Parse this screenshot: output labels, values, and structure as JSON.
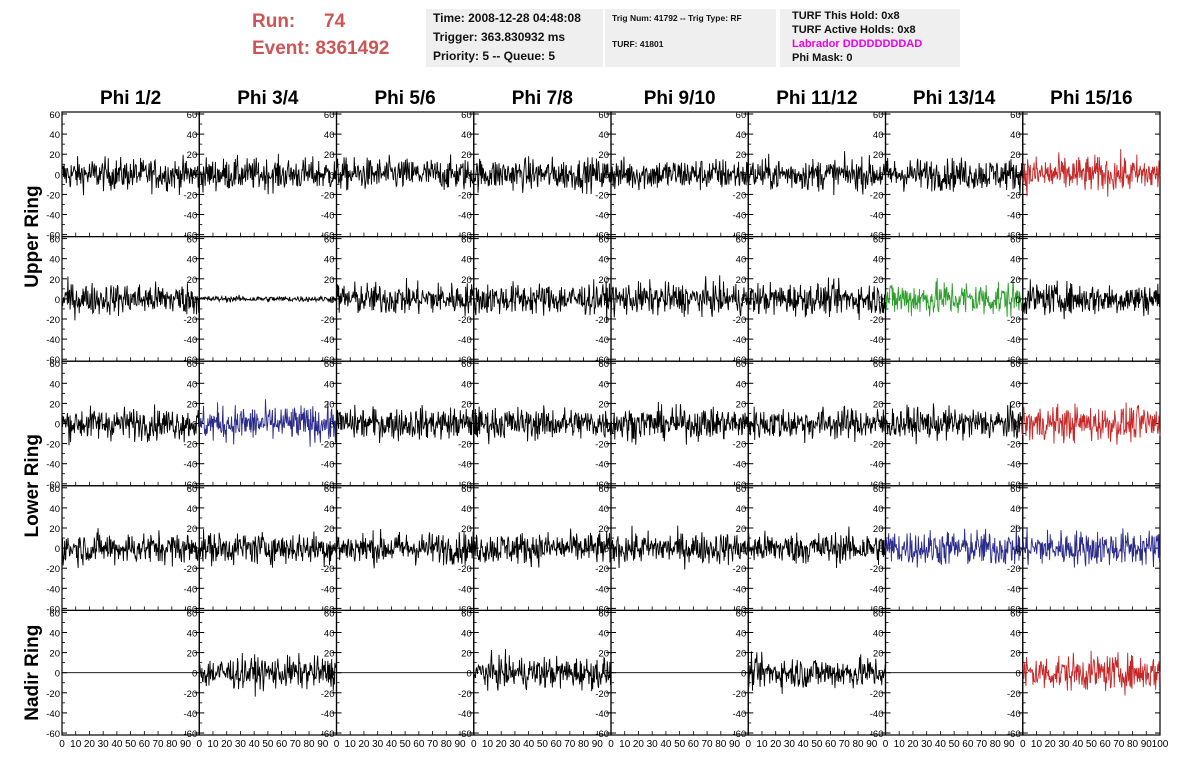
{
  "header": {
    "run_label": "Run:",
    "run_value": "74",
    "event_label": "Event:",
    "event_value": "8361492"
  },
  "info1": {
    "time": "Time: 2008-12-28 04:48:08",
    "trigger": "Trigger: 363.830932 ms",
    "priority": "Priority: 5 -- Queue: 5"
  },
  "info2": {
    "trig": "Trig Num: 41792 -- Trig Type: RF",
    "turf": "TURF: 41801"
  },
  "info3": {
    "this_hold": "TURF This Hold: 0x8",
    "active_holds": "TURF Active Holds: 0x8",
    "labrador": "Labrador DDDDDDDDAD",
    "phi_mask": "Phi Mask: 0"
  },
  "colors": {
    "normal": "#000000",
    "red": "#c62828",
    "green": "#2e9e2e",
    "blue": "#2b2b8c"
  },
  "chart_data": {
    "type": "line",
    "columns": [
      "Phi 1/2",
      "Phi 3/4",
      "Phi 5/6",
      "Phi 7/8",
      "Phi 9/10",
      "Phi 11/12",
      "Phi 13/14",
      "Phi 15/16"
    ],
    "ring_labels": [
      {
        "label": "Upper Ring",
        "rows": [
          0,
          1
        ]
      },
      {
        "label": "Lower Ring",
        "rows": [
          2,
          3
        ]
      },
      {
        "label": "Nadir Ring",
        "rows": [
          4,
          4
        ]
      }
    ],
    "xlim": [
      0,
      100
    ],
    "ylim": [
      -60,
      60
    ],
    "x_ticks": [
      0,
      10,
      20,
      30,
      40,
      50,
      60,
      70,
      80,
      90,
      100
    ],
    "y_ticks": [
      60,
      40,
      20,
      0,
      -20,
      -40,
      -60
    ],
    "samples": 256,
    "panel_state": [
      [
        "normal",
        "normal",
        "normal",
        "normal",
        "normal",
        "normal",
        "normal",
        "red"
      ],
      [
        "normal",
        "flat",
        "normal",
        "normal",
        "normal",
        "normal",
        "green",
        "normal"
      ],
      [
        "normal",
        "blue",
        "normal",
        "normal",
        "normal",
        "normal",
        "normal",
        "red"
      ],
      [
        "normal",
        "normal",
        "normal",
        "normal",
        "normal",
        "normal",
        "blue",
        "blue"
      ],
      [
        "zero",
        "normal",
        "zero",
        "normal",
        "zero",
        "normal",
        "zero",
        "red"
      ]
    ]
  }
}
